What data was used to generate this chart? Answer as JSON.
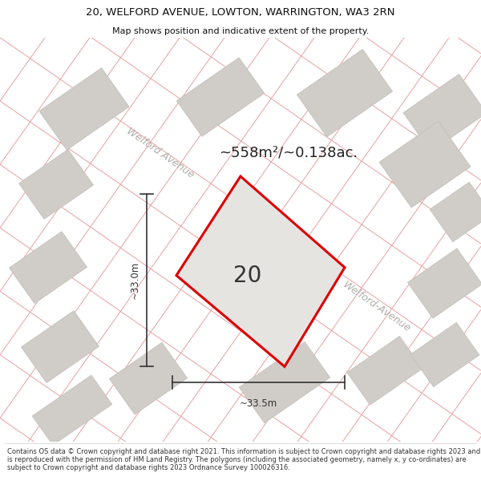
{
  "title_line1": "20, WELFORD AVENUE, LOWTON, WARRINGTON, WA3 2RN",
  "title_line2": "Map shows position and indicative extent of the property.",
  "area_label": "~558m²/~0.138ac.",
  "plot_number": "20",
  "dim_vertical": "~33.0m",
  "dim_horizontal": "~33.5m",
  "street_label_top": "Welford Avenue",
  "street_label_right": "Welford-Avenue",
  "footer": "Contains OS data © Crown copyright and database right 2021. This information is subject to Crown copyright and database rights 2023 and is reproduced with the permission of HM Land Registry. The polygons (including the associated geometry, namely x, y co-ordinates) are subject to Crown copyright and database rights 2023 Ordnance Survey 100026316.",
  "map_bg": "#eeece8",
  "plot_fill": "#e6e4e0",
  "plot_edge_color": "#dd0000",
  "road_color": "#e8a0a0",
  "block_fill": "#d0cdc8",
  "block_edge": "#c0bdb8",
  "dim_color": "#333333",
  "title_color": "#111111",
  "street_label_color": "#b0aeaa",
  "footer_color": "#333333"
}
